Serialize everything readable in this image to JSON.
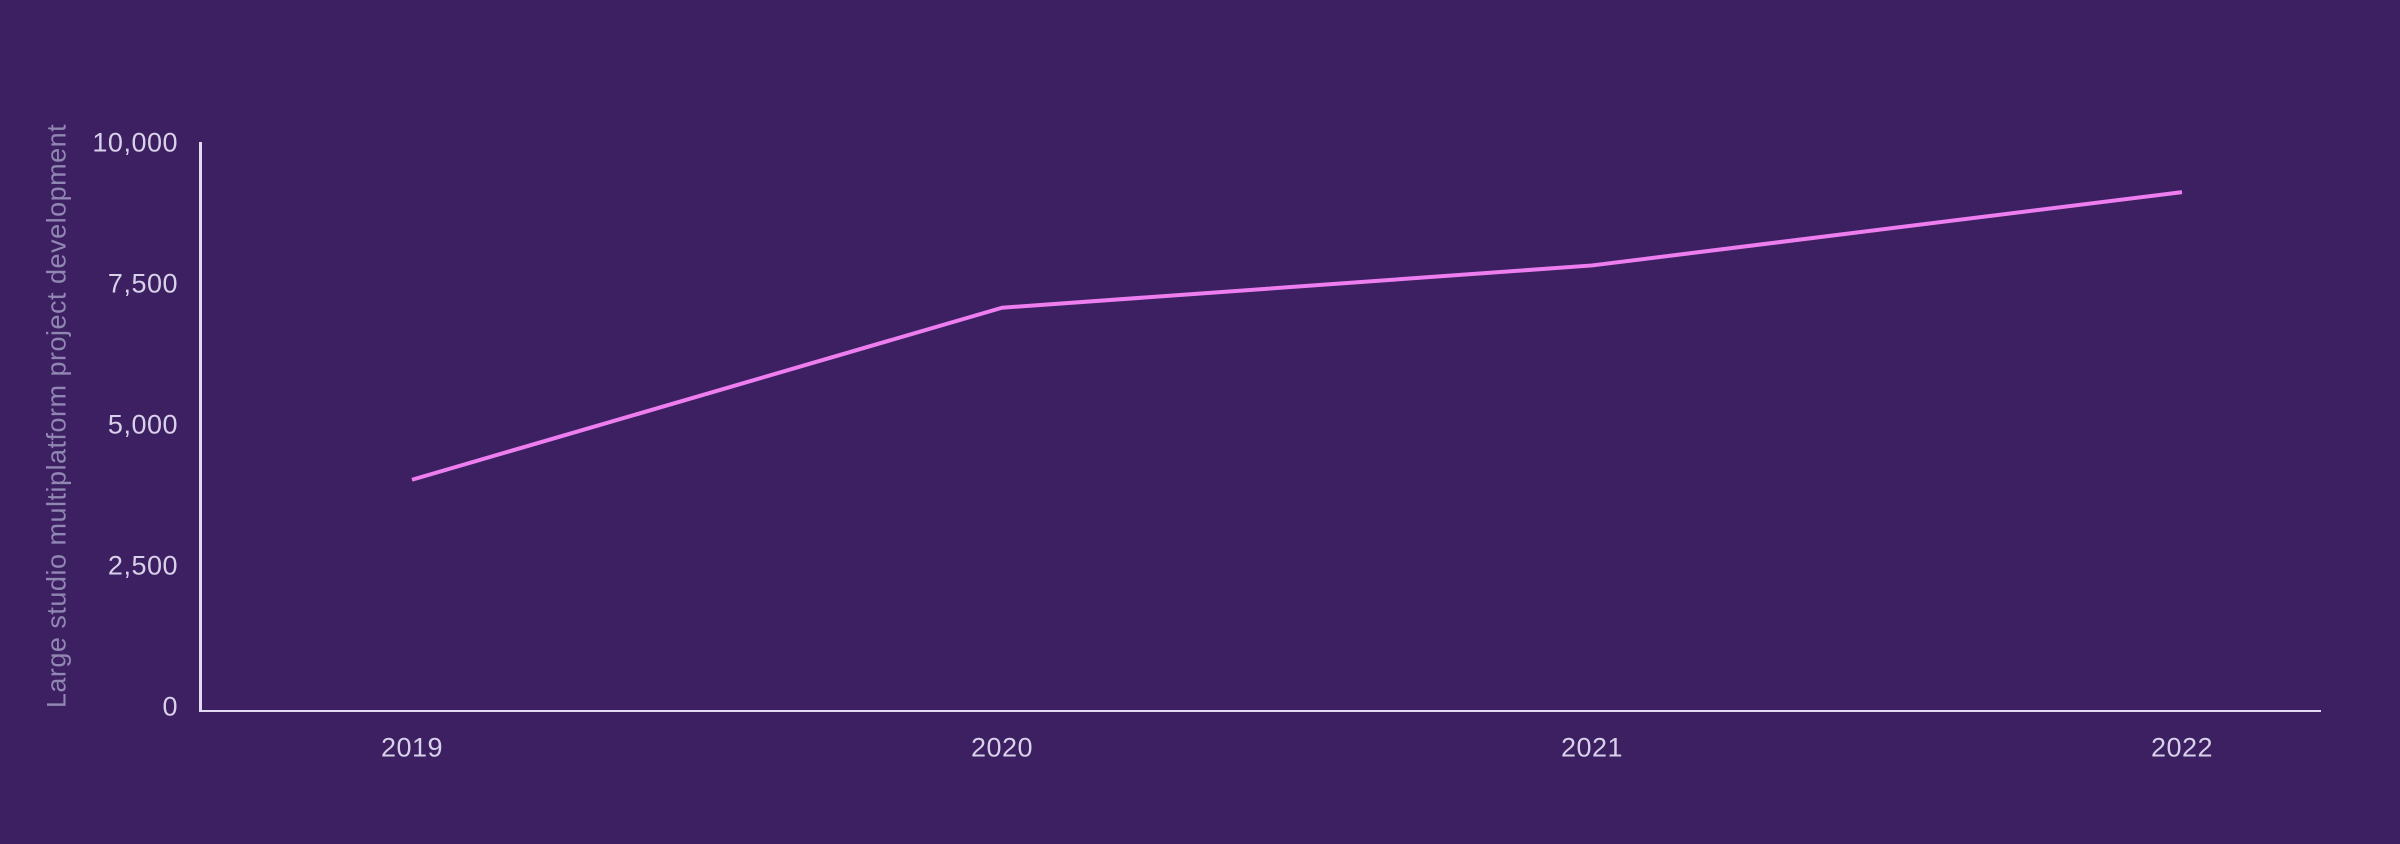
{
  "colors": {
    "background": "#3c2062",
    "axis_line": "#e3daf1",
    "tick_label": "#d9d1ea",
    "axis_title": "#9187b3",
    "series_line": "#ee7ef0"
  },
  "chart_data": {
    "type": "line",
    "title": "",
    "xlabel": "",
    "ylabel": "Large studio multiplatform project development",
    "categories": [
      "2019",
      "2020",
      "2021",
      "2022"
    ],
    "series": [
      {
        "name": "Large studio multiplatform project development",
        "values": [
          4100,
          7150,
          7900,
          9200
        ],
        "color": "#ee7ef0"
      }
    ],
    "ylim": [
      0,
      10000
    ],
    "yticks": [
      {
        "value": 0,
        "label": "0"
      },
      {
        "value": 2500,
        "label": "2,500"
      },
      {
        "value": 5000,
        "label": "5,000"
      },
      {
        "value": 7500,
        "label": "7,500"
      },
      {
        "value": 10000,
        "label": "10,000"
      }
    ],
    "grid": false,
    "legend": false,
    "line_width": 4
  }
}
